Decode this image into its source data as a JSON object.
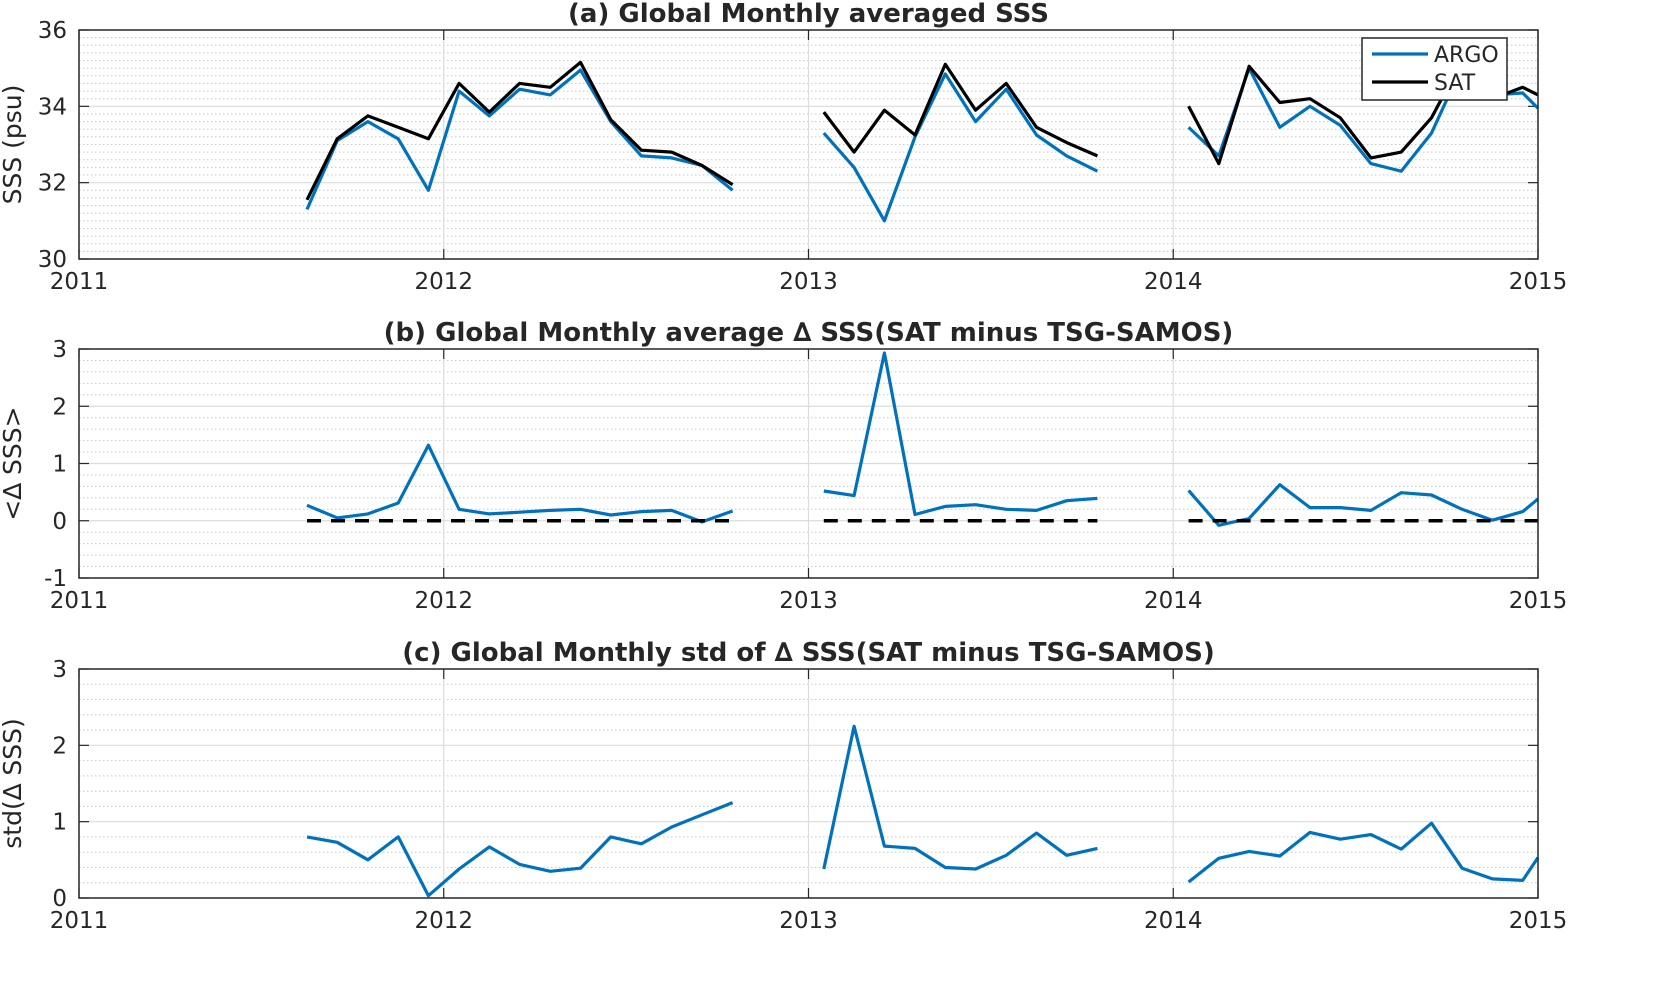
{
  "x_tick_labels": [
    "2011",
    "2012",
    "2013",
    "2014",
    "2015"
  ],
  "colors": {
    "argo": "#0072BD",
    "sat": "#000000",
    "zero_line": "#000000",
    "grid": "#dcdcdc",
    "minor_grid": "#c8c8c8",
    "axis": "#262626"
  },
  "legend": {
    "items": [
      "ARGO",
      "SAT"
    ],
    "location": "top-right of panel (a)"
  },
  "chart_data": [
    {
      "type": "line",
      "title": "(a) Global Monthly averaged SSS",
      "xlabel": "",
      "ylabel": "SSS (psu)",
      "xlim": [
        2011,
        2015
      ],
      "ylim": [
        30,
        36
      ],
      "y_ticks": [
        "30",
        "32",
        "34",
        "36"
      ],
      "grid": true,
      "legend": "top-right",
      "series": [
        {
          "name": "ARGO",
          "x": [
            2011.625,
            2011.708,
            2011.792,
            2011.875,
            2011.958,
            2012.042,
            2012.125,
            2012.208,
            2012.292,
            2012.375,
            2012.458,
            2012.542,
            2012.625,
            2012.708,
            2012.792,
            null,
            2013.042,
            2013.125,
            2013.208,
            2013.292,
            2013.375,
            2013.458,
            2013.542,
            2013.625,
            2013.708,
            2013.792,
            null,
            2014.042,
            2014.125,
            2014.208,
            2014.292,
            2014.375,
            2014.458,
            2014.542,
            2014.625,
            2014.708,
            2014.792,
            2014.875,
            2014.958,
            2015.0
          ],
          "y": [
            31.3,
            33.1,
            33.6,
            33.15,
            31.8,
            34.4,
            33.75,
            34.45,
            34.3,
            34.95,
            33.6,
            32.7,
            32.65,
            32.45,
            31.8,
            null,
            33.3,
            32.4,
            31.0,
            33.2,
            34.85,
            33.6,
            34.45,
            33.25,
            32.7,
            32.3,
            null,
            33.45,
            32.7,
            35.0,
            33.45,
            34.0,
            33.5,
            32.5,
            32.3,
            33.3,
            35.05,
            34.3,
            34.35,
            33.95
          ]
        },
        {
          "name": "SAT",
          "x": [
            2011.625,
            2011.708,
            2011.792,
            2011.875,
            2011.958,
            2012.042,
            2012.125,
            2012.208,
            2012.292,
            2012.375,
            2012.458,
            2012.542,
            2012.625,
            2012.708,
            2012.792,
            null,
            2013.042,
            2013.125,
            2013.208,
            2013.292,
            2013.375,
            2013.458,
            2013.542,
            2013.625,
            2013.708,
            2013.792,
            null,
            2014.042,
            2014.125,
            2014.208,
            2014.292,
            2014.375,
            2014.458,
            2014.542,
            2014.625,
            2014.708,
            2014.792,
            2014.875,
            2014.958,
            2015.0
          ],
          "y": [
            31.55,
            33.15,
            33.75,
            33.45,
            33.15,
            34.6,
            33.85,
            34.6,
            34.5,
            35.15,
            33.65,
            32.85,
            32.8,
            32.45,
            31.95,
            null,
            33.85,
            32.8,
            33.9,
            33.25,
            35.1,
            33.9,
            34.6,
            33.45,
            33.05,
            32.7,
            null,
            34.0,
            32.5,
            35.05,
            34.1,
            34.2,
            33.7,
            32.65,
            32.8,
            33.7,
            35.2,
            34.2,
            34.5,
            34.3
          ]
        }
      ]
    },
    {
      "type": "line",
      "title": "(b) Global Monthly average ∆ SSS(SAT minus TSG-SAMOS)",
      "xlabel": "",
      "ylabel": "<∆ SSS>",
      "xlim": [
        2011,
        2015
      ],
      "ylim": [
        -1,
        3
      ],
      "y_ticks": [
        "-1",
        "0",
        "1",
        "2",
        "3"
      ],
      "grid": true,
      "series": [
        {
          "x": [
            2011.625,
            2011.708,
            2011.792,
            2011.875,
            2011.958,
            2012.042,
            2012.125,
            2012.208,
            2012.292,
            2012.375,
            2012.458,
            2012.542,
            2012.625,
            2012.708,
            2012.792,
            null,
            2013.042,
            2013.125,
            2013.208,
            2013.292,
            2013.375,
            2013.458,
            2013.542,
            2013.625,
            2013.708,
            2013.792,
            null,
            2014.042,
            2014.125,
            2014.208,
            2014.292,
            2014.375,
            2014.458,
            2014.542,
            2014.625,
            2014.708,
            2014.792,
            2014.875,
            2014.958,
            2015.0
          ],
          "y": [
            0.27,
            0.05,
            0.12,
            0.31,
            1.32,
            0.2,
            0.12,
            0.15,
            0.18,
            0.2,
            0.1,
            0.16,
            0.18,
            -0.02,
            0.17,
            null,
            0.52,
            0.44,
            2.93,
            0.11,
            0.25,
            0.28,
            0.2,
            0.18,
            0.35,
            0.39,
            null,
            0.53,
            -0.08,
            0.04,
            0.63,
            0.23,
            0.23,
            0.18,
            0.49,
            0.45,
            0.2,
            0.01,
            0.16,
            0.38
          ]
        },
        {
          "x": [
            2011.625,
            2012.792,
            null,
            2013.042,
            2013.792,
            null,
            2014.042,
            2015.0
          ],
          "y": [
            0,
            0,
            null,
            0,
            0,
            null,
            0,
            0
          ],
          "style": "dashed"
        }
      ]
    },
    {
      "type": "line",
      "title": "(c) Global Monthly std of ∆ SSS(SAT minus TSG-SAMOS)",
      "xlabel": "",
      "ylabel": "std(∆ SSS)",
      "xlim": [
        2011,
        2015
      ],
      "ylim": [
        0,
        3
      ],
      "y_ticks": [
        "0",
        "1",
        "2",
        "3"
      ],
      "grid": true,
      "series": [
        {
          "x": [
            2011.625,
            2011.708,
            2011.792,
            2011.875,
            2011.958,
            2012.042,
            2012.125,
            2012.208,
            2012.292,
            2012.375,
            2012.458,
            2012.542,
            2012.625,
            2012.708,
            2012.792,
            null,
            2013.042,
            2013.125,
            2013.208,
            2013.292,
            2013.375,
            2013.458,
            2013.542,
            2013.625,
            2013.708,
            2013.792,
            null,
            2014.042,
            2014.125,
            2014.208,
            2014.292,
            2014.375,
            2014.458,
            2014.542,
            2014.625,
            2014.708,
            2014.792,
            2014.875,
            2014.958,
            2015.0
          ],
          "y": [
            0.8,
            0.73,
            0.5,
            0.8,
            0.03,
            0.38,
            0.67,
            0.44,
            0.35,
            0.39,
            0.8,
            0.71,
            0.93,
            1.09,
            1.25,
            null,
            0.38,
            2.25,
            0.68,
            0.65,
            0.4,
            0.38,
            0.56,
            0.85,
            0.56,
            0.65,
            null,
            0.21,
            0.52,
            0.61,
            0.55,
            0.86,
            0.77,
            0.83,
            0.64,
            0.98,
            0.39,
            0.25,
            0.23,
            0.53
          ]
        }
      ]
    }
  ]
}
